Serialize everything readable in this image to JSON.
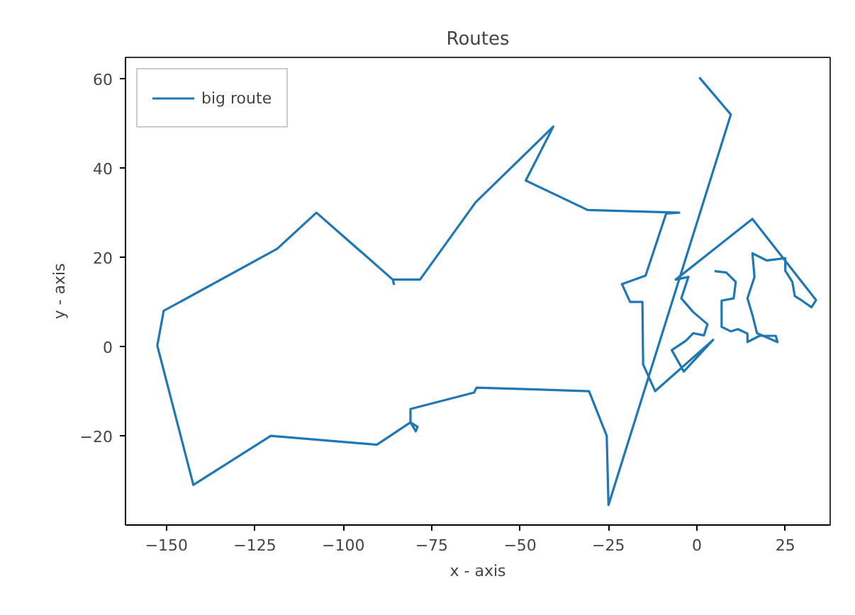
{
  "chart_data": {
    "type": "line",
    "title": "Routes",
    "xlabel": "x - axis",
    "ylabel": "y - axis",
    "xlim": [
      -161.6,
      37.7
    ],
    "ylim": [
      -40,
      64.8
    ],
    "xticks": [
      {
        "value": -150,
        "label": "−150"
      },
      {
        "value": -125,
        "label": "−125"
      },
      {
        "value": -100,
        "label": "−100"
      },
      {
        "value": -75,
        "label": "−75"
      },
      {
        "value": -50,
        "label": "−50"
      },
      {
        "value": -25,
        "label": "−25"
      },
      0,
      25
    ],
    "yticks": [
      {
        "value": -20,
        "label": "−20"
      },
      0,
      20,
      40,
      60
    ],
    "grid": false,
    "legend": "top left",
    "marker": "none",
    "line_style": "solid",
    "series": [
      {
        "name": "big route",
        "color": "#1f77b4",
        "x": [
          0.7,
          9.6,
          -25,
          -25.5,
          -30.5,
          -62.3,
          -63,
          -81,
          -81,
          -79,
          -79.5,
          -81,
          -90.5,
          -120.5,
          -142.4,
          -152.6,
          -150.8,
          -118.7,
          -107.6,
          -86,
          -85.7,
          -86,
          -78.3,
          -62.6,
          -40.6,
          -48.4,
          -30.9,
          -5,
          -8.7,
          -14.5,
          -21.2,
          -18.9,
          -15.4,
          -15.2,
          -11.8,
          4.6,
          -3.7,
          -7.1,
          -3.1,
          -1,
          2,
          3,
          -1,
          -4.4,
          -2.4,
          -6,
          15.7,
          33.7,
          32.4,
          29.7,
          27.7,
          27,
          25,
          25,
          19.7,
          15.7,
          16.3,
          14.3,
          15.7,
          17,
          22.8,
          22.3,
          17.7,
          14.3,
          14.3,
          11.6,
          9.6,
          7,
          7,
          10.4,
          11,
          8.3,
          5
        ],
        "values": [
          60.3,
          52,
          -35.5,
          -20,
          -10,
          -9.2,
          -10.3,
          -14,
          -17,
          -18,
          -19,
          -17,
          -22,
          -20,
          -31,
          0.2,
          8,
          21.9,
          30,
          15,
          14,
          15,
          15,
          32.3,
          49.3,
          37.2,
          30.6,
          30,
          29.8,
          15.9,
          14,
          10,
          10,
          -4,
          -10,
          1.5,
          -5.6,
          -0.8,
          1.3,
          3,
          2.5,
          5,
          7.7,
          10.8,
          15.6,
          15,
          28.6,
          10.4,
          8.8,
          10.3,
          11.3,
          14.5,
          17,
          19.8,
          19.3,
          20.9,
          15.6,
          10.8,
          7.1,
          3,
          1,
          2.4,
          2.4,
          1,
          2.9,
          3.9,
          3.4,
          4.4,
          10.3,
          10.8,
          14.5,
          16.6,
          16.9
        ]
      }
    ]
  }
}
